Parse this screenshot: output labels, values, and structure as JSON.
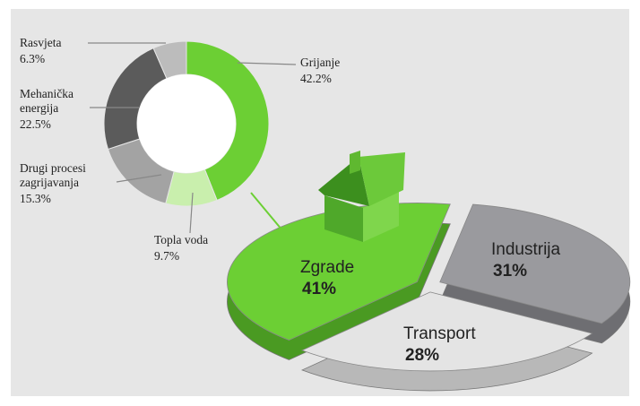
{
  "chart_data": [
    {
      "type": "donut",
      "categories": [
        "Grijanje",
        "Topla voda",
        "Drugi procesi zagrijavanja",
        "Mehanička energija",
        "Rasvjeta"
      ],
      "values": [
        42.2,
        9.7,
        15.3,
        22.5,
        6.3
      ],
      "value_labels": [
        "42.2%",
        "9.7%",
        "15.3%",
        "22.5%",
        "6.3%"
      ],
      "colors": [
        "#6ccf34",
        "#c9efad",
        "#a3a3a3",
        "#5b5b5b",
        "#bcbcbc"
      ]
    },
    {
      "type": "pie",
      "categories": [
        "Zgrade",
        "Industrija",
        "Transport"
      ],
      "values": [
        41,
        31,
        28
      ],
      "value_labels": [
        "41%",
        "31%",
        "28%"
      ],
      "colors": [
        "#6ccf34",
        "#9a9a9e",
        "#e4e4e4"
      ]
    }
  ]
}
